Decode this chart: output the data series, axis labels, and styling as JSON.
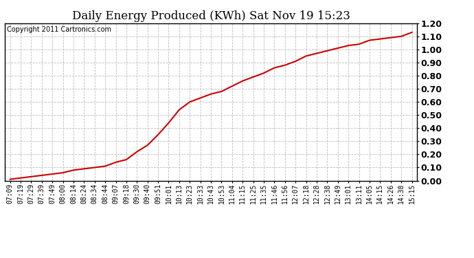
{
  "title": "Daily Energy Produced (KWh) Sat Nov 19 15:23",
  "copyright": "Copyright 2011 Cartronics.com",
  "line_color": "#cc0000",
  "background_color": "#ffffff",
  "plot_bg_color": "#ffffff",
  "grid_color": "#bbbbbb",
  "ylim": [
    0.0,
    1.2
  ],
  "yticks": [
    0.0,
    0.1,
    0.2,
    0.3,
    0.4,
    0.5,
    0.6,
    0.7,
    0.8,
    0.9,
    1.0,
    1.1,
    1.2
  ],
  "xtick_labels": [
    "07:09",
    "07:19",
    "07:29",
    "07:39",
    "07:49",
    "08:00",
    "08:14",
    "08:24",
    "08:34",
    "08:44",
    "09:07",
    "09:18",
    "09:30",
    "09:40",
    "09:51",
    "10:01",
    "10:13",
    "10:23",
    "10:33",
    "10:43",
    "10:53",
    "11:04",
    "11:15",
    "11:25",
    "11:35",
    "11:46",
    "11:56",
    "12:07",
    "12:18",
    "12:28",
    "12:38",
    "12:49",
    "13:01",
    "13:11",
    "14:05",
    "14:15",
    "14:26",
    "14:38",
    "15:15"
  ],
  "y_values": [
    0.01,
    0.02,
    0.03,
    0.04,
    0.05,
    0.06,
    0.08,
    0.09,
    0.1,
    0.11,
    0.14,
    0.16,
    0.22,
    0.27,
    0.35,
    0.44,
    0.54,
    0.6,
    0.63,
    0.66,
    0.68,
    0.72,
    0.76,
    0.79,
    0.82,
    0.86,
    0.88,
    0.91,
    0.95,
    0.97,
    0.99,
    1.01,
    1.03,
    1.04,
    1.07,
    1.08,
    1.09,
    1.1,
    1.13
  ],
  "title_fontsize": 12,
  "tick_fontsize": 7,
  "copyright_fontsize": 7,
  "ytick_fontsize": 9,
  "line_width": 1.5
}
